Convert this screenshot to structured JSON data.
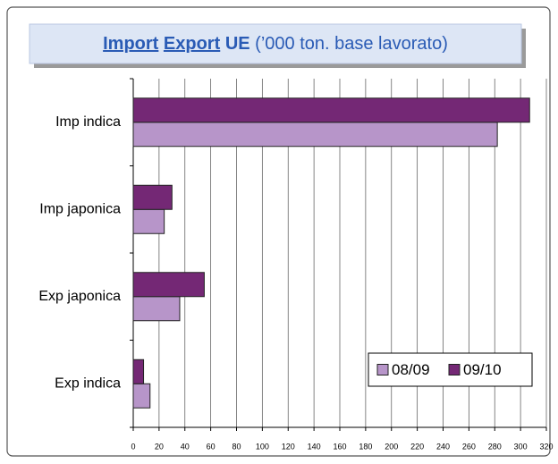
{
  "chart_data": {
    "type": "bar",
    "orientation": "horizontal",
    "title_parts": [
      "Import",
      "Export",
      "UE",
      "(’000 ton. base lavorato)"
    ],
    "categories": [
      "Imp indica",
      "Imp japonica",
      "Exp japonica",
      "Exp indica"
    ],
    "series": [
      {
        "name": "08/09",
        "color": "#b795c9",
        "values": [
          282,
          24,
          36,
          13
        ]
      },
      {
        "name": "09/10",
        "color": "#742875",
        "values": [
          307,
          30,
          55,
          8
        ]
      }
    ],
    "xlim": [
      0,
      320
    ],
    "xticks": [
      0,
      20,
      40,
      60,
      80,
      100,
      120,
      140,
      160,
      180,
      200,
      220,
      240,
      260,
      280,
      300,
      320
    ],
    "grid": true,
    "legend": "lower right"
  }
}
